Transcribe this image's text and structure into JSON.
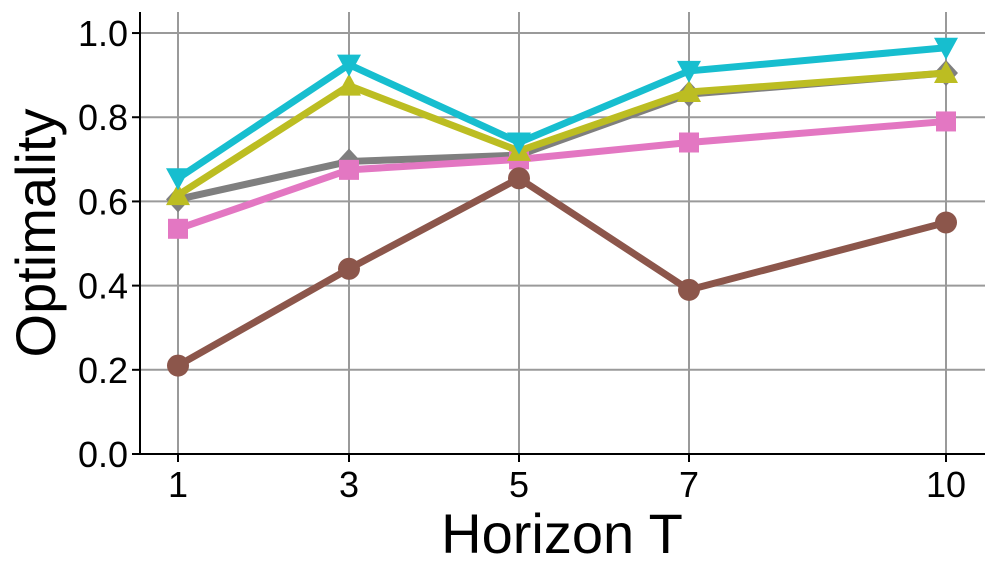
{
  "chart_data": {
    "type": "line",
    "title": "",
    "xlabel": "Horizon T",
    "ylabel": "Optimality",
    "x": [
      1,
      3,
      5,
      7,
      10
    ],
    "x_tick_labels": [
      "1",
      "3",
      "5",
      "7",
      "10"
    ],
    "y_ticks": [
      0.0,
      0.2,
      0.4,
      0.6,
      0.8,
      1.0
    ],
    "y_tick_labels": [
      "0.0",
      "0.2",
      "0.4",
      "0.6",
      "0.8",
      "1.0"
    ],
    "ylim": [
      0.0,
      1.05
    ],
    "grid": true,
    "legend": "none",
    "series": [
      {
        "color": "#7f7f7f",
        "marker": "diamond",
        "values": [
          0.605,
          0.695,
          0.71,
          0.855,
          0.905
        ]
      },
      {
        "color": "#e377c2",
        "marker": "square",
        "values": [
          0.535,
          0.675,
          0.7,
          0.74,
          0.79
        ]
      },
      {
        "color": "#8c564b",
        "marker": "circle",
        "values": [
          0.21,
          0.44,
          0.655,
          0.39,
          0.55
        ]
      },
      {
        "color": "#bcbd22",
        "marker": "triangle-up",
        "values": [
          0.615,
          0.875,
          0.72,
          0.86,
          0.905
        ]
      },
      {
        "color": "#17becf",
        "marker": "triangle-down",
        "values": [
          0.655,
          0.925,
          0.74,
          0.91,
          0.965
        ]
      }
    ]
  }
}
